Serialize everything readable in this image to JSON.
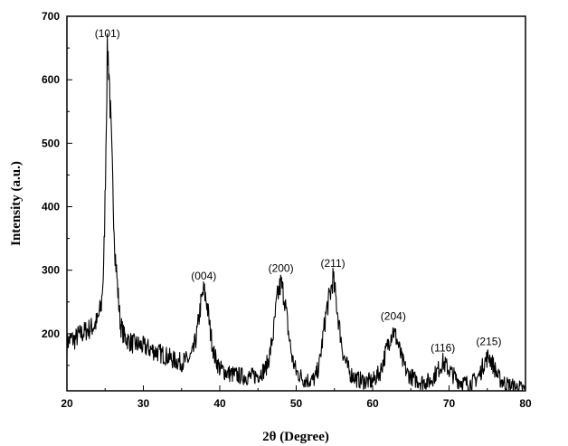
{
  "chart_data": {
    "type": "line",
    "title": "",
    "xlabel": "2θ (Degree)",
    "ylabel": "Intensity (a.u.)",
    "xlim": [
      20,
      80
    ],
    "ylim": [
      110,
      700
    ],
    "x_ticks": [
      20,
      30,
      40,
      50,
      60,
      70,
      80
    ],
    "y_ticks": [
      200,
      300,
      400,
      500,
      600,
      700
    ],
    "grid": false,
    "legend": "none",
    "line_color": "#000000",
    "peaks": [
      {
        "label": "(101)",
        "x": 25.3,
        "y": 650
      },
      {
        "label": "(004)",
        "x": 37.9,
        "y": 268
      },
      {
        "label": "(200)",
        "x": 48.0,
        "y": 280
      },
      {
        "label": "(211)",
        "x": 54.8,
        "y": 288
      },
      {
        "label": "(204)",
        "x": 62.7,
        "y": 205
      },
      {
        "label": "(116)",
        "x": 69.2,
        "y": 155
      },
      {
        "label": "(215)",
        "x": 75.2,
        "y": 165
      }
    ],
    "series": [
      {
        "values": [
          [
            20.0,
            185
          ],
          [
            20.5,
            192
          ],
          [
            21.0,
            190
          ],
          [
            21.5,
            198
          ],
          [
            22.0,
            200
          ],
          [
            22.5,
            205
          ],
          [
            23.0,
            208
          ],
          [
            23.5,
            212
          ],
          [
            24.0,
            220
          ],
          [
            24.5,
            245
          ],
          [
            24.8,
            300
          ],
          [
            25.0,
            420
          ],
          [
            25.2,
            580
          ],
          [
            25.3,
            650
          ],
          [
            25.5,
            620
          ],
          [
            25.7,
            540
          ],
          [
            26.0,
            430
          ],
          [
            26.3,
            330
          ],
          [
            26.7,
            260
          ],
          [
            27.0,
            215
          ],
          [
            27.5,
            195
          ],
          [
            28.0,
            190
          ],
          [
            28.5,
            185
          ],
          [
            29.0,
            183
          ],
          [
            29.5,
            182
          ],
          [
            30.0,
            180
          ],
          [
            31.0,
            175
          ],
          [
            32.0,
            170
          ],
          [
            33.0,
            165
          ],
          [
            34.0,
            158
          ],
          [
            35.0,
            155
          ],
          [
            36.0,
            160
          ],
          [
            36.5,
            170
          ],
          [
            37.0,
            200
          ],
          [
            37.5,
            245
          ],
          [
            37.9,
            268
          ],
          [
            38.3,
            250
          ],
          [
            38.8,
            200
          ],
          [
            39.3,
            165
          ],
          [
            40.0,
            145
          ],
          [
            41.0,
            138
          ],
          [
            42.0,
            135
          ],
          [
            43.0,
            133
          ],
          [
            44.0,
            132
          ],
          [
            45.0,
            135
          ],
          [
            46.0,
            145
          ],
          [
            46.5,
            165
          ],
          [
            47.0,
            200
          ],
          [
            47.5,
            255
          ],
          [
            48.0,
            280
          ],
          [
            48.5,
            255
          ],
          [
            49.0,
            200
          ],
          [
            49.5,
            160
          ],
          [
            50.0,
            140
          ],
          [
            51.0,
            128
          ],
          [
            52.0,
            126
          ],
          [
            52.5,
            130
          ],
          [
            53.0,
            150
          ],
          [
            53.5,
            195
          ],
          [
            54.0,
            240
          ],
          [
            54.5,
            265
          ],
          [
            54.8,
            288
          ],
          [
            55.2,
            255
          ],
          [
            55.7,
            205
          ],
          [
            56.2,
            165
          ],
          [
            57.0,
            138
          ],
          [
            58.0,
            128
          ],
          [
            59.0,
            125
          ],
          [
            60.0,
            125
          ],
          [
            61.0,
            140
          ],
          [
            61.7,
            170
          ],
          [
            62.3,
            195
          ],
          [
            62.7,
            205
          ],
          [
            63.2,
            190
          ],
          [
            63.8,
            160
          ],
          [
            64.5,
            138
          ],
          [
            65.5,
            128
          ],
          [
            66.5,
            124
          ],
          [
            67.5,
            125
          ],
          [
            68.3,
            138
          ],
          [
            69.2,
            155
          ],
          [
            70.0,
            143
          ],
          [
            71.0,
            128
          ],
          [
            72.0,
            122
          ],
          [
            73.0,
            122
          ],
          [
            74.0,
            135
          ],
          [
            74.6,
            155
          ],
          [
            75.2,
            165
          ],
          [
            75.8,
            150
          ],
          [
            76.5,
            130
          ],
          [
            77.5,
            120
          ],
          [
            78.5,
            116
          ],
          [
            79.0,
            115
          ],
          [
            79.5,
            113
          ],
          [
            80.0,
            112
          ]
        ]
      }
    ]
  }
}
